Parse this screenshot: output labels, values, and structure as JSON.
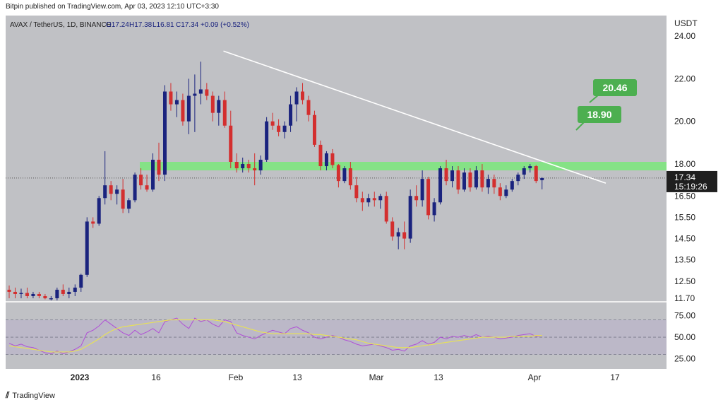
{
  "header": {
    "published_line": "Bitpin published on TradingView.com, Apr 03, 2023 12:10 UTC+3:30"
  },
  "legend": {
    "symbol": "AVAX / TetherUS, 1D, BINANCE",
    "o": "O17.24",
    "h": "H17.38",
    "l": "L16.81",
    "c": "C17.34",
    "chg": "+0.09 (+0.52%)"
  },
  "axis": {
    "currency": "USDT",
    "price_ticks": [
      "24.00",
      "22.00",
      "20.00",
      "18.00",
      "16.50",
      "15.50",
      "14.50",
      "13.50",
      "12.50",
      "11.70"
    ],
    "rsi_ticks": [
      "75.00",
      "50.00",
      "25.00"
    ],
    "time_ticks": [
      "2023",
      "16",
      "Feb",
      "13",
      "Mar",
      "13",
      "Apr",
      "17"
    ]
  },
  "price_label": {
    "value": "17.34",
    "countdown": "15:19:26"
  },
  "targets": [
    "20.46",
    "18.90"
  ],
  "footer": {
    "brand": "TradingView"
  },
  "colors": {
    "up": "#1a237e",
    "down": "#d32f2f",
    "zone": "#7ee57e",
    "target": "#4caf50",
    "rsi": "#b04fd6",
    "rsi_ma": "#e6e05a",
    "trendline": "#ffffff"
  },
  "chart_data": {
    "type": "candlestick",
    "title": "AVAX / TetherUS, 1D, BINANCE",
    "ylabel": "USDT",
    "ylim": [
      11.6,
      24.7
    ],
    "resistance_zone": [
      17.7,
      18.1
    ],
    "trendline": {
      "from": {
        "day": 24,
        "price": 23.3
      },
      "to": {
        "day": 89,
        "price": 17.1
      }
    },
    "candles_ohlc": [
      [
        12.1,
        12.3,
        11.7,
        12.0
      ],
      [
        12.0,
        12.2,
        11.7,
        11.9
      ],
      [
        11.9,
        12.15,
        11.7,
        11.95
      ],
      [
        11.95,
        12.2,
        11.7,
        11.8
      ],
      [
        11.8,
        12.0,
        11.7,
        11.9
      ],
      [
        11.9,
        12.0,
        11.7,
        11.8
      ],
      [
        11.8,
        11.9,
        11.65,
        11.7
      ],
      [
        11.7,
        11.8,
        11.6,
        11.7
      ],
      [
        11.7,
        12.2,
        11.6,
        12.1
      ],
      [
        12.1,
        12.35,
        11.8,
        11.9
      ],
      [
        11.9,
        12.2,
        11.7,
        12.0
      ],
      [
        12.0,
        12.35,
        11.8,
        12.2
      ],
      [
        12.2,
        12.85,
        12.0,
        12.8
      ],
      [
        12.8,
        15.5,
        12.7,
        15.3
      ],
      [
        15.3,
        15.5,
        15.0,
        15.2
      ],
      [
        15.2,
        16.5,
        15.1,
        16.4
      ],
      [
        16.4,
        18.6,
        16.1,
        17.0
      ],
      [
        17.0,
        17.2,
        16.3,
        16.6
      ],
      [
        16.6,
        17.0,
        16.1,
        16.8
      ],
      [
        16.8,
        17.3,
        15.7,
        15.9
      ],
      [
        15.9,
        16.4,
        15.7,
        16.3
      ],
      [
        16.3,
        17.6,
        16.2,
        17.5
      ],
      [
        17.5,
        17.8,
        16.8,
        17.0
      ],
      [
        17.0,
        17.5,
        16.7,
        16.8
      ],
      [
        16.8,
        18.5,
        16.7,
        18.2
      ],
      [
        18.2,
        19.0,
        17.2,
        17.5
      ],
      [
        17.5,
        21.7,
        17.2,
        21.4
      ],
      [
        21.4,
        21.8,
        20.5,
        20.8
      ],
      [
        20.8,
        21.4,
        20.2,
        21.0
      ],
      [
        21.0,
        21.3,
        19.8,
        20.0
      ],
      [
        20.0,
        22.0,
        19.4,
        21.2
      ],
      [
        21.2,
        22.2,
        19.5,
        21.3
      ],
      [
        21.3,
        22.8,
        20.8,
        21.5
      ],
      [
        21.5,
        21.8,
        21.0,
        21.2
      ],
      [
        21.2,
        21.4,
        20.0,
        20.4
      ],
      [
        20.4,
        21.2,
        19.8,
        21.0
      ],
      [
        21.0,
        21.4,
        19.7,
        19.8
      ],
      [
        19.8,
        20.5,
        17.8,
        18.1
      ],
      [
        18.1,
        18.5,
        17.6,
        17.8
      ],
      [
        17.8,
        18.3,
        17.6,
        18.0
      ],
      [
        18.0,
        18.2,
        17.6,
        17.8
      ],
      [
        17.8,
        18.5,
        17.0,
        17.7
      ],
      [
        17.7,
        18.4,
        17.5,
        18.2
      ],
      [
        18.2,
        20.2,
        18.1,
        20.0
      ],
      [
        20.0,
        20.4,
        19.6,
        19.8
      ],
      [
        19.8,
        20.1,
        19.3,
        19.5
      ],
      [
        19.5,
        20.0,
        19.2,
        19.8
      ],
      [
        19.8,
        21.2,
        19.5,
        20.8
      ],
      [
        20.8,
        21.6,
        20.0,
        21.4
      ],
      [
        21.4,
        21.8,
        20.8,
        21.0
      ],
      [
        21.0,
        21.2,
        20.0,
        20.3
      ],
      [
        20.3,
        20.5,
        18.8,
        18.9
      ],
      [
        18.9,
        19.1,
        17.7,
        17.9
      ],
      [
        17.9,
        18.6,
        17.7,
        18.5
      ],
      [
        18.5,
        18.7,
        17.8,
        17.95
      ],
      [
        17.95,
        18.0,
        16.9,
        17.2
      ],
      [
        17.2,
        17.9,
        17.1,
        17.8
      ],
      [
        17.8,
        18.1,
        16.8,
        17.0
      ],
      [
        17.0,
        17.4,
        16.2,
        16.4
      ],
      [
        16.4,
        16.7,
        15.8,
        16.2
      ],
      [
        16.2,
        16.6,
        16.0,
        16.4
      ],
      [
        16.4,
        16.7,
        16.0,
        16.3
      ],
      [
        16.3,
        16.6,
        15.9,
        16.5
      ],
      [
        16.5,
        16.7,
        15.2,
        15.3
      ],
      [
        15.3,
        15.5,
        14.4,
        14.6
      ],
      [
        14.6,
        15.0,
        14.0,
        14.8
      ],
      [
        14.8,
        15.3,
        14.0,
        14.5
      ],
      [
        14.5,
        16.8,
        14.3,
        16.5
      ],
      [
        16.5,
        17.0,
        16.0,
        16.3
      ],
      [
        16.3,
        17.7,
        16.0,
        17.3
      ],
      [
        17.3,
        17.4,
        15.4,
        15.6
      ],
      [
        15.6,
        16.4,
        15.3,
        16.2
      ],
      [
        16.2,
        17.9,
        16.1,
        17.8
      ],
      [
        17.8,
        18.2,
        17.0,
        17.2
      ],
      [
        17.2,
        17.9,
        16.9,
        17.7
      ],
      [
        17.7,
        17.9,
        16.6,
        16.8
      ],
      [
        16.8,
        17.8,
        16.7,
        17.6
      ],
      [
        17.6,
        17.8,
        16.7,
        16.9
      ],
      [
        16.9,
        17.9,
        16.8,
        17.7
      ],
      [
        17.7,
        18.0,
        16.7,
        16.9
      ],
      [
        16.9,
        17.5,
        16.6,
        17.3
      ],
      [
        17.3,
        17.5,
        16.6,
        16.9
      ],
      [
        16.9,
        17.1,
        16.3,
        16.5
      ],
      [
        16.5,
        17.0,
        16.4,
        16.8
      ],
      [
        16.8,
        17.3,
        16.7,
        17.2
      ],
      [
        17.2,
        17.6,
        17.0,
        17.5
      ],
      [
        17.5,
        17.9,
        17.3,
        17.8
      ],
      [
        17.8,
        18.0,
        17.6,
        17.9
      ],
      [
        17.9,
        17.95,
        17.1,
        17.2
      ],
      [
        17.24,
        17.38,
        16.81,
        17.34
      ]
    ],
    "rsi": {
      "ylim": [
        15,
        90
      ],
      "levels": [
        70,
        50,
        30
      ],
      "values": [
        43,
        40,
        42,
        39,
        38,
        35,
        32,
        31,
        34,
        31,
        33,
        36,
        40,
        55,
        58,
        63,
        70,
        65,
        60,
        55,
        52,
        58,
        53,
        56,
        60,
        55,
        68,
        70,
        72,
        65,
        60,
        72,
        68,
        70,
        65,
        62,
        70,
        68,
        55,
        52,
        50,
        48,
        52,
        55,
        58,
        56,
        54,
        60,
        62,
        58,
        55,
        50,
        48,
        50,
        52,
        50,
        47,
        45,
        42,
        40,
        41,
        42,
        40,
        38,
        35,
        36,
        34,
        40,
        42,
        46,
        42,
        44,
        50,
        48,
        51,
        50,
        52,
        50,
        53,
        50,
        51,
        50,
        48,
        49,
        50,
        52,
        53,
        54,
        51,
        52
      ],
      "ma_values": [
        40,
        39,
        38,
        37,
        36,
        35,
        34,
        33,
        33,
        33,
        33,
        34,
        36,
        40,
        44,
        48,
        53,
        57,
        60,
        62,
        63,
        64,
        65,
        66,
        67,
        68,
        69,
        70,
        70,
        70,
        70,
        70,
        70,
        70,
        70,
        69,
        68,
        66,
        64,
        62,
        60,
        58,
        56,
        55,
        54,
        54,
        54,
        54,
        54,
        54,
        54,
        53,
        53,
        52,
        51,
        50,
        49,
        48,
        47,
        45,
        43,
        42,
        41,
        40,
        39,
        38,
        38,
        38,
        39,
        40,
        41,
        42,
        43,
        44,
        45,
        46,
        47,
        48,
        49,
        50,
        50,
        50,
        50,
        50,
        51,
        51,
        51,
        51,
        52,
        52
      ]
    }
  }
}
